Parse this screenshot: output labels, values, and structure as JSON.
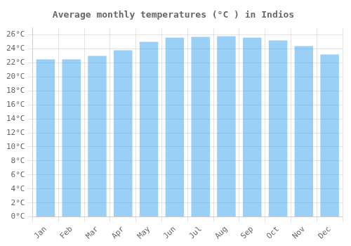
{
  "chart_data": {
    "type": "bar",
    "title": "Average monthly temperatures (°C ) in Indios",
    "categories": [
      "Jan",
      "Feb",
      "Mar",
      "Apr",
      "May",
      "Jun",
      "Jul",
      "Aug",
      "Sep",
      "Oct",
      "Nov",
      "Dec"
    ],
    "values": [
      22.5,
      22.5,
      23.0,
      23.8,
      25.0,
      25.6,
      25.7,
      25.8,
      25.6,
      25.2,
      24.4,
      23.2
    ],
    "ylim": [
      0,
      27
    ],
    "yticks": [
      {
        "value": 0,
        "label": "0°C"
      },
      {
        "value": 2,
        "label": "2°C"
      },
      {
        "value": 4,
        "label": "4°C"
      },
      {
        "value": 6,
        "label": "6°C"
      },
      {
        "value": 8,
        "label": "8°C"
      },
      {
        "value": 10,
        "label": "10°C"
      },
      {
        "value": 12,
        "label": "12°C"
      },
      {
        "value": 14,
        "label": "14°C"
      },
      {
        "value": 16,
        "label": "16°C"
      },
      {
        "value": 18,
        "label": "18°C"
      },
      {
        "value": 20,
        "label": "20°C"
      },
      {
        "value": 22,
        "label": "22°C"
      },
      {
        "value": 24,
        "label": "24°C"
      },
      {
        "value": 26,
        "label": "26°C"
      }
    ],
    "grid": true
  }
}
